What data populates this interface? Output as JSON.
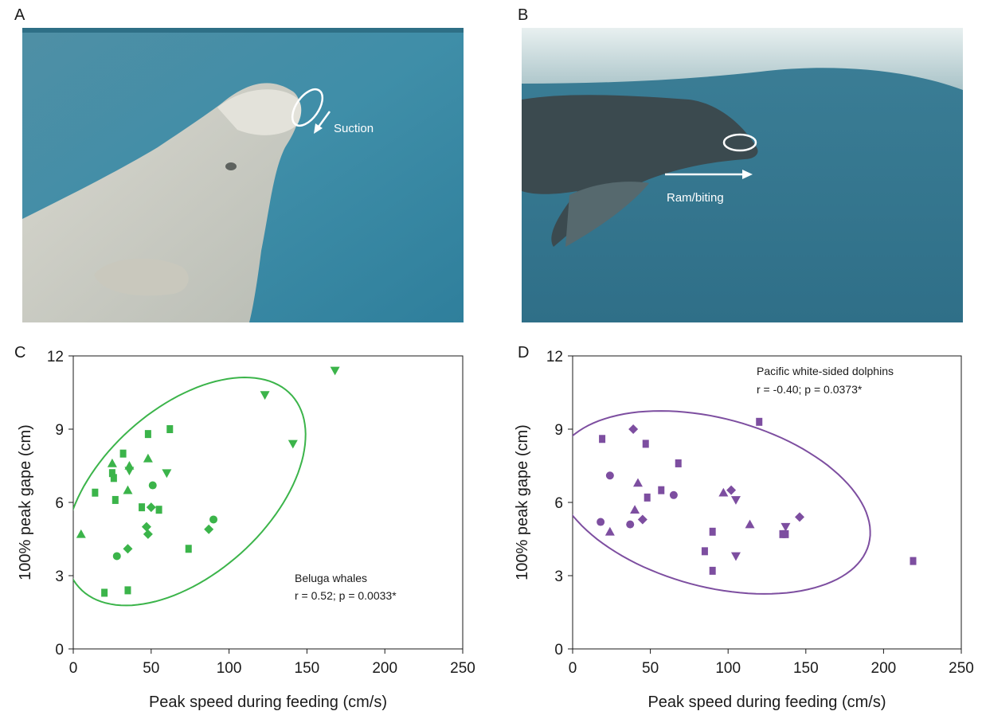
{
  "panels": {
    "a": {
      "letter": "A",
      "annotation": "Suction"
    },
    "b": {
      "letter": "B",
      "annotation": "Ram/biting"
    },
    "c": {
      "letter": "C"
    },
    "d": {
      "letter": "D"
    }
  },
  "colors": {
    "beluga": "#3bb44a",
    "dolphin": "#7d4ea0"
  },
  "chart_data": [
    {
      "type": "scatter",
      "panel": "C",
      "xlabel": "Peak speed during feeding (cm/s)",
      "ylabel": "100% peak gape (cm)",
      "xlim": [
        0,
        250
      ],
      "ylim": [
        0,
        12
      ],
      "xticks": [
        0,
        50,
        100,
        150,
        200,
        250
      ],
      "yticks": [
        0,
        3,
        6,
        9,
        12
      ],
      "grid": false,
      "annotation": {
        "line1": "Beluga whales",
        "line2": "r = 0.52; p = 0.0033*"
      },
      "ellipse": {
        "cx": 72,
        "cy": 6.45,
        "rx": 92,
        "ry": 3.4,
        "angle_deg": 42
      },
      "series": [
        {
          "marker": "triangle-up",
          "points": [
            [
              5,
              4.7
            ],
            [
              25,
              7.6
            ],
            [
              35,
              6.5
            ],
            [
              48,
              7.8
            ],
            [
              36,
              7.5
            ]
          ]
        },
        {
          "marker": "square",
          "points": [
            [
              14,
              6.4
            ],
            [
              26,
              7.0
            ],
            [
              27,
              6.1
            ],
            [
              32,
              8.0
            ],
            [
              48,
              8.8
            ],
            [
              62,
              9.0
            ],
            [
              44,
              5.8
            ],
            [
              55,
              5.7
            ],
            [
              74,
              4.1
            ],
            [
              20,
              2.3
            ],
            [
              35,
              2.4
            ],
            [
              25,
              7.2
            ]
          ]
        },
        {
          "marker": "triangle-down",
          "points": [
            [
              36,
              7.3
            ],
            [
              60,
              7.2
            ],
            [
              123,
              10.4
            ],
            [
              168,
              11.4
            ],
            [
              141,
              8.4
            ]
          ]
        },
        {
          "marker": "circle",
          "points": [
            [
              28,
              3.8
            ],
            [
              51,
              6.7
            ],
            [
              90,
              5.3
            ]
          ]
        },
        {
          "marker": "diamond",
          "points": [
            [
              35,
              4.1
            ],
            [
              47,
              5.0
            ],
            [
              48,
              4.7
            ],
            [
              50,
              5.8
            ],
            [
              87,
              4.9
            ]
          ]
        }
      ]
    },
    {
      "type": "scatter",
      "panel": "D",
      "xlabel": "Peak speed during feeding (cm/s)",
      "ylabel": "100% peak gape (cm)",
      "xlim": [
        0,
        250
      ],
      "ylim": [
        0,
        12
      ],
      "xticks": [
        0,
        50,
        100,
        150,
        200,
        250
      ],
      "yticks": [
        0,
        3,
        6,
        9,
        12
      ],
      "grid": false,
      "annotation": {
        "line1": "Pacific white-sided dolphins",
        "line2": "r = -0.40; p = 0.0373*"
      },
      "ellipse": {
        "cx": 90,
        "cy": 6.0,
        "rx": 104,
        "ry": 3.45,
        "angle_deg": -15
      },
      "series": [
        {
          "marker": "circle",
          "points": [
            [
              18,
              5.2
            ],
            [
              24,
              7.1
            ],
            [
              37,
              5.1
            ],
            [
              65,
              6.3
            ]
          ]
        },
        {
          "marker": "triangle-up",
          "points": [
            [
              24,
              4.8
            ],
            [
              40,
              5.7
            ],
            [
              42,
              6.8
            ],
            [
              97,
              6.4
            ],
            [
              114,
              5.1
            ]
          ]
        },
        {
          "marker": "diamond",
          "points": [
            [
              39,
              9.0
            ],
            [
              45,
              5.3
            ],
            [
              102,
              6.5
            ],
            [
              146,
              5.4
            ]
          ]
        },
        {
          "marker": "square",
          "points": [
            [
              19,
              8.6
            ],
            [
              47,
              8.4
            ],
            [
              48,
              6.2
            ],
            [
              57,
              6.5
            ],
            [
              68,
              7.6
            ],
            [
              85,
              4.0
            ],
            [
              90,
              4.8
            ],
            [
              90,
              3.2
            ],
            [
              120,
              9.3
            ],
            [
              135,
              4.7
            ],
            [
              137,
              4.7
            ],
            [
              219,
              3.6
            ]
          ]
        },
        {
          "marker": "triangle-down",
          "points": [
            [
              105,
              6.1
            ],
            [
              105,
              3.8
            ],
            [
              137,
              5.0
            ]
          ]
        }
      ]
    }
  ]
}
